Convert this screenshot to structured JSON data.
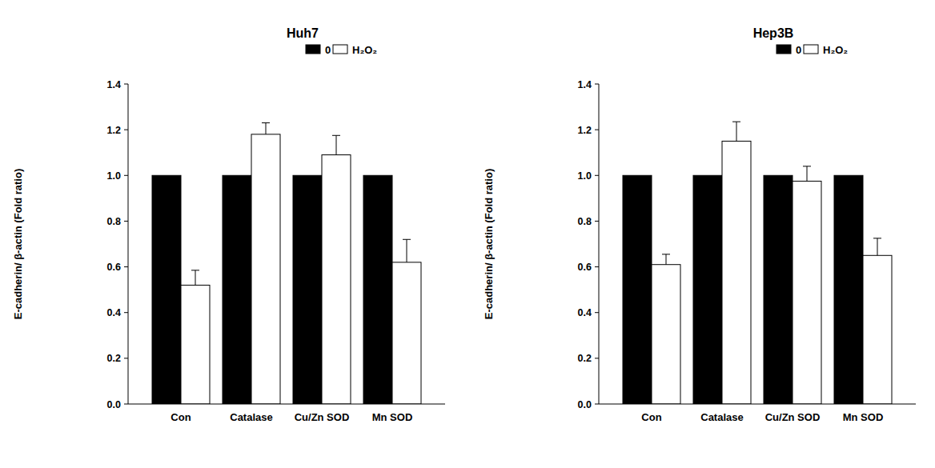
{
  "chart_data": [
    {
      "type": "bar",
      "title": "Huh7",
      "y_label": "E-cadherin/ β-actin (Fold ratio)",
      "categories": [
        "Con",
        "Catalase",
        "Cu/Zn SOD",
        "Mn SOD"
      ],
      "series": [
        {
          "name": "0",
          "color": "#000000",
          "values": [
            1.0,
            1.0,
            1.0,
            1.0
          ]
        },
        {
          "name": "H₂O₂",
          "color": "#ffffff",
          "values": [
            0.52,
            1.18,
            1.09,
            0.62
          ],
          "errors": [
            0.065,
            0.05,
            0.085,
            0.1
          ]
        }
      ],
      "ylim": [
        0,
        1.4
      ],
      "yticks": [
        {
          "value": 0,
          "label": "0.0"
        },
        0.2,
        0.4,
        0.6,
        0.8,
        {
          "value": 1,
          "label": "1.0"
        },
        1.2,
        1.4
      ],
      "legend": "upper right",
      "grid": false
    },
    {
      "type": "bar",
      "title": "Hep3B",
      "y_label": "E-cadherin/ β-actin (Fold ratio)",
      "categories": [
        "Con",
        "Catalase",
        "Cu/Zn SOD",
        "Mn SOD"
      ],
      "series": [
        {
          "name": "0",
          "color": "#000000",
          "values": [
            1.0,
            1.0,
            1.0,
            1.0
          ]
        },
        {
          "name": "H₂O₂",
          "color": "#ffffff",
          "values": [
            0.61,
            1.15,
            0.975,
            0.65
          ],
          "errors": [
            0.045,
            0.085,
            0.065,
            0.075
          ]
        }
      ],
      "ylim": [
        0,
        1.4
      ],
      "yticks": [
        {
          "value": 0,
          "label": "0.0"
        },
        0.2,
        0.4,
        0.6,
        0.8,
        {
          "value": 1,
          "label": "1.0"
        },
        1.2,
        1.4
      ],
      "legend": "upper right",
      "grid": false
    }
  ]
}
